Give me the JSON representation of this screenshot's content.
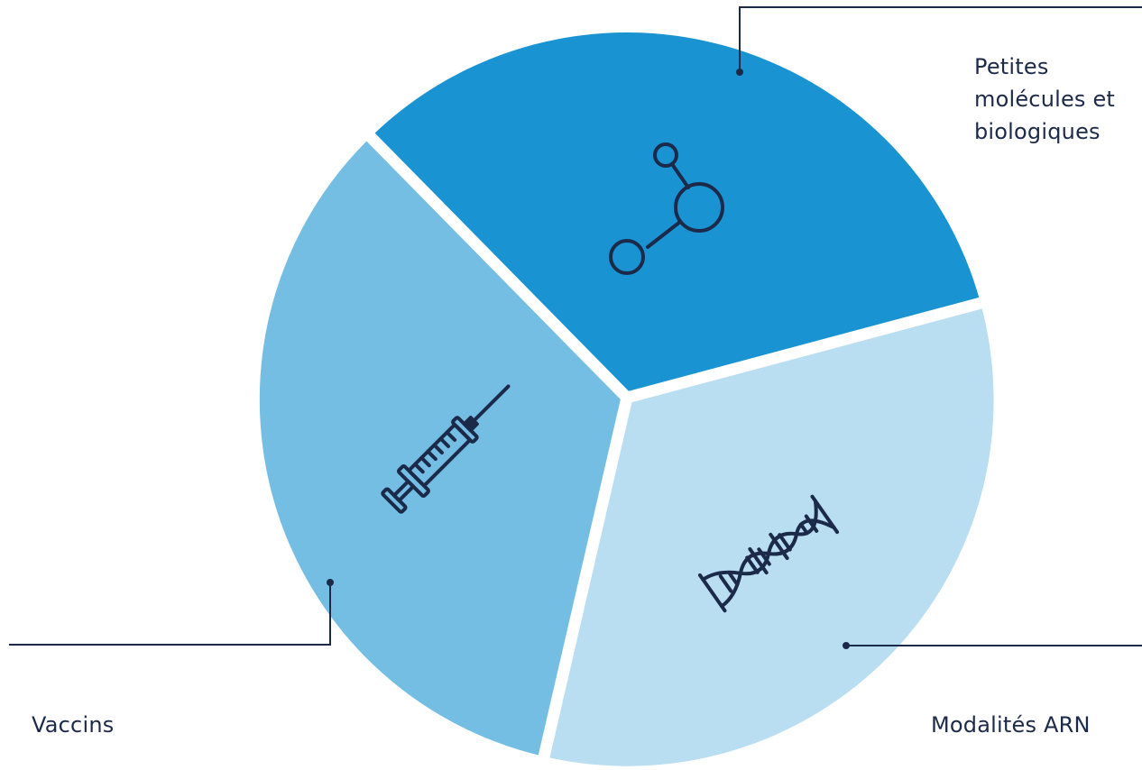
{
  "segments": [
    {
      "id": "molecules",
      "label_lines": [
        "Petites",
        "molécules et",
        "biologiques"
      ],
      "color": "#1993d2",
      "icon": "molecule-icon"
    },
    {
      "id": "arn",
      "label_lines": [
        "Modalités ARN"
      ],
      "color": "#b9ddf1",
      "icon": "dna-icon"
    },
    {
      "id": "vaccins",
      "label_lines": [
        "Vaccins"
      ],
      "color": "#74bde3",
      "icon": "syringe-icon"
    }
  ],
  "colors": {
    "ink": "#1c2a4a",
    "background": "#ffffff"
  }
}
